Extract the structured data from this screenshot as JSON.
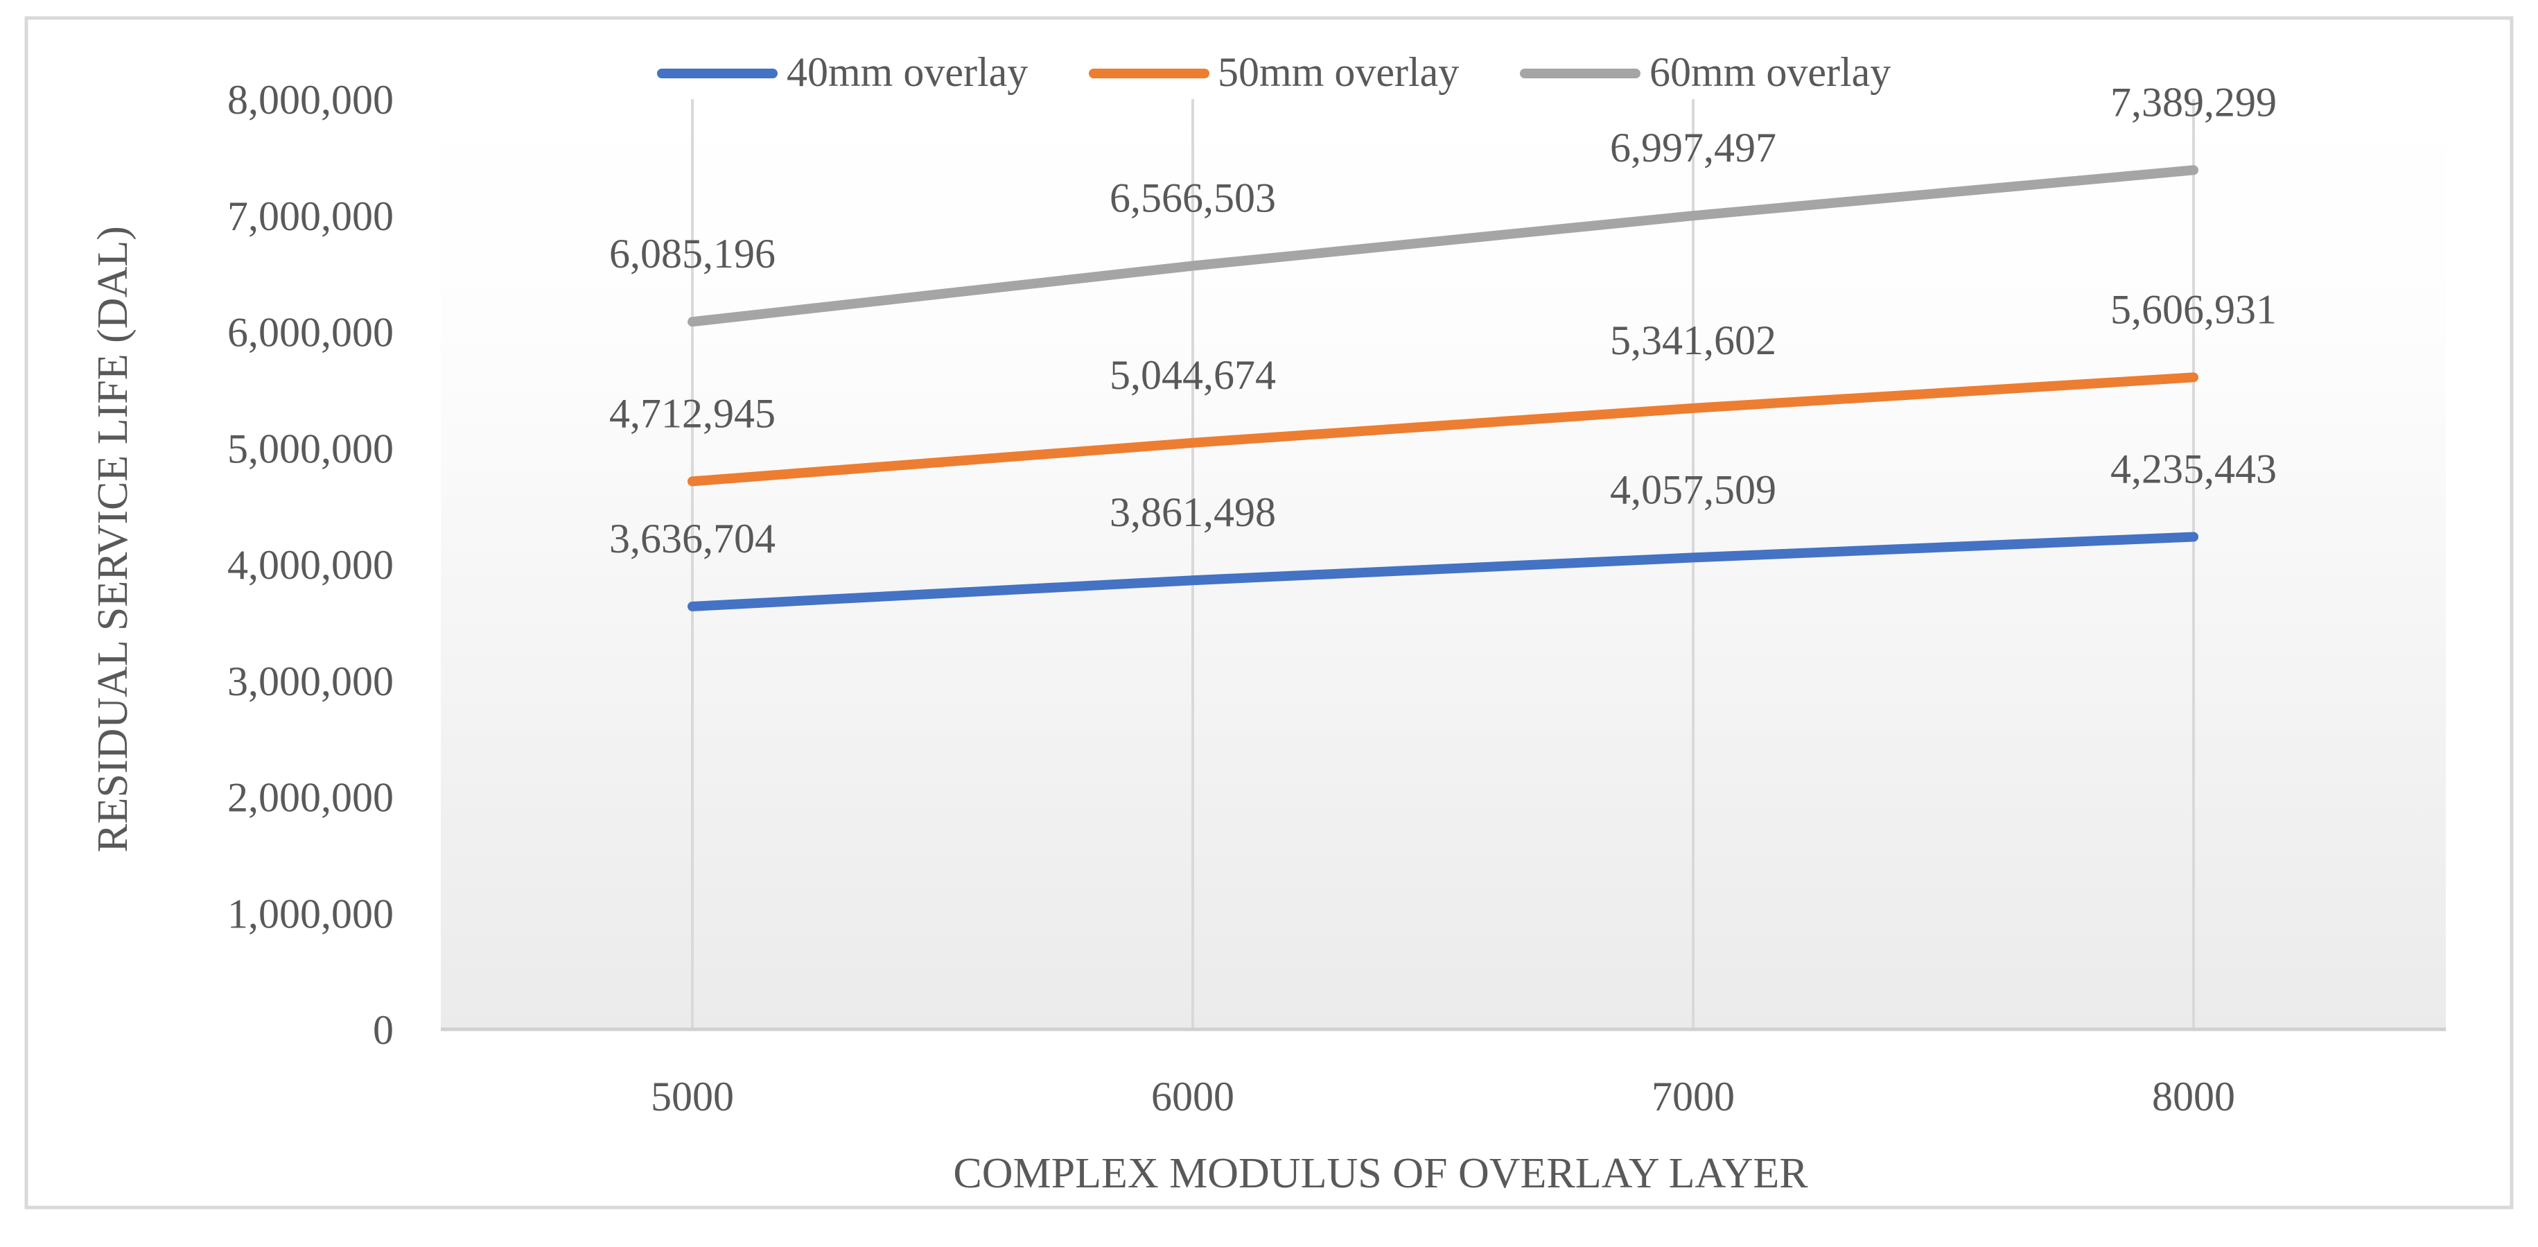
{
  "chart_data": {
    "type": "line",
    "title": "",
    "xlabel": "COMPLEX MODULUS OF OVERLAY LAYER",
    "ylabel": "RESIDUAL SERVICE LIFE (DAL)",
    "categories": [
      "5000",
      "6000",
      "7000",
      "8000"
    ],
    "ylim": [
      0,
      8000000
    ],
    "yticks": [
      0,
      1000000,
      2000000,
      3000000,
      4000000,
      5000000,
      6000000,
      7000000,
      8000000
    ],
    "ytick_labels": [
      "0",
      "1,000,000",
      "2,000,000",
      "3,000,000",
      "4,000,000",
      "5,000,000",
      "6,000,000",
      "7,000,000",
      "8,000,000"
    ],
    "grid": "vertical",
    "legend_position": "top",
    "series": [
      {
        "name": "40mm overlay",
        "color": "#4472C4",
        "values": [
          3636704,
          3861498,
          4057509,
          4235443
        ],
        "labels": [
          "3,636,704",
          "3,861,498",
          "4,057,509",
          "4,235,443"
        ]
      },
      {
        "name": "50mm overlay",
        "color": "#ED7D31",
        "values": [
          4712945,
          5044674,
          5341602,
          5606931
        ],
        "labels": [
          "4,712,945",
          "5,044,674",
          "5,341,602",
          "5,606,931"
        ]
      },
      {
        "name": "60mm overlay",
        "color": "#A5A5A5",
        "values": [
          6085196,
          6566503,
          6997497,
          7389299
        ],
        "labels": [
          "6,085,196",
          "6,566,503",
          "6,997,497",
          "7,389,299"
        ]
      }
    ]
  }
}
